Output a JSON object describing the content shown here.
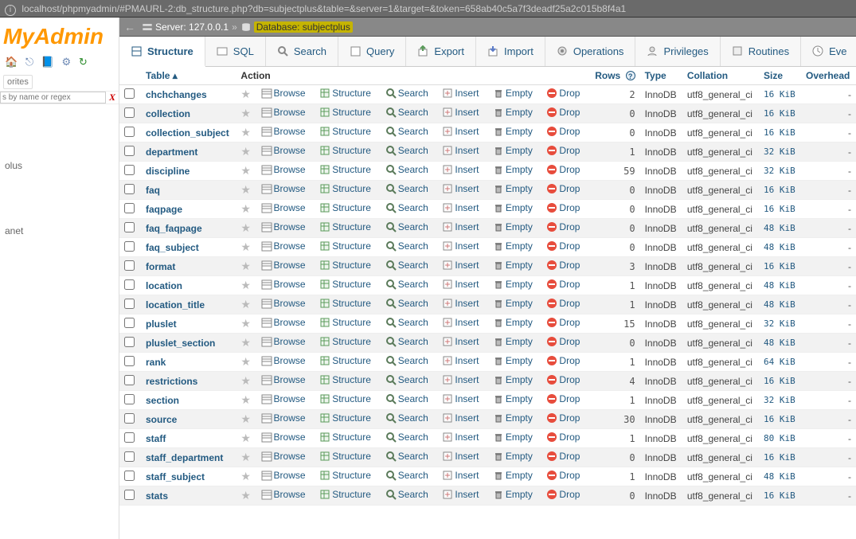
{
  "browser": {
    "url": "localhost/phpmyadmin/#PMAURL-2:db_structure.php?db=subjectplus&table=&server=1&target=&token=658ab40c5a7f3deadf25a2c015b8f4a1"
  },
  "sidebar": {
    "logo_text": "MyAdmin",
    "favorites_label": "orites",
    "filter_placeholder": "s by name or regex",
    "tree_items": [
      "olus",
      "anet"
    ]
  },
  "serverbar": {
    "server_label": "Server: ",
    "server_value": "127.0.0.1",
    "db_label": "Database: ",
    "db_value": "subjectplus"
  },
  "tabs": [
    {
      "id": "structure",
      "label": "Structure",
      "active": true
    },
    {
      "id": "sql",
      "label": "SQL",
      "active": false
    },
    {
      "id": "search",
      "label": "Search",
      "active": false
    },
    {
      "id": "query",
      "label": "Query",
      "active": false
    },
    {
      "id": "export",
      "label": "Export",
      "active": false
    },
    {
      "id": "import",
      "label": "Import",
      "active": false
    },
    {
      "id": "operations",
      "label": "Operations",
      "active": false
    },
    {
      "id": "privileges",
      "label": "Privileges",
      "active": false
    },
    {
      "id": "routines",
      "label": "Routines",
      "active": false
    },
    {
      "id": "events",
      "label": "Eve",
      "active": false
    }
  ],
  "columns": {
    "table": "Table",
    "action": "Action",
    "rows": "Rows",
    "type": "Type",
    "collation": "Collation",
    "size": "Size",
    "overhead": "Overhead"
  },
  "actions": {
    "browse": "Browse",
    "structure": "Structure",
    "search": "Search",
    "insert": "Insert",
    "empty": "Empty",
    "drop": "Drop"
  },
  "tables": [
    {
      "name": "chchchanges",
      "rows": "2",
      "type": "InnoDB",
      "collation": "utf8_general_ci",
      "size": "16 KiB",
      "overhead": "-"
    },
    {
      "name": "collection",
      "rows": "0",
      "type": "InnoDB",
      "collation": "utf8_general_ci",
      "size": "16 KiB",
      "overhead": "-"
    },
    {
      "name": "collection_subject",
      "rows": "0",
      "type": "InnoDB",
      "collation": "utf8_general_ci",
      "size": "16 KiB",
      "overhead": "-"
    },
    {
      "name": "department",
      "rows": "1",
      "type": "InnoDB",
      "collation": "utf8_general_ci",
      "size": "32 KiB",
      "overhead": "-"
    },
    {
      "name": "discipline",
      "rows": "59",
      "type": "InnoDB",
      "collation": "utf8_general_ci",
      "size": "32 KiB",
      "overhead": "-"
    },
    {
      "name": "faq",
      "rows": "0",
      "type": "InnoDB",
      "collation": "utf8_general_ci",
      "size": "16 KiB",
      "overhead": "-"
    },
    {
      "name": "faqpage",
      "rows": "0",
      "type": "InnoDB",
      "collation": "utf8_general_ci",
      "size": "16 KiB",
      "overhead": "-"
    },
    {
      "name": "faq_faqpage",
      "rows": "0",
      "type": "InnoDB",
      "collation": "utf8_general_ci",
      "size": "48 KiB",
      "overhead": "-"
    },
    {
      "name": "faq_subject",
      "rows": "0",
      "type": "InnoDB",
      "collation": "utf8_general_ci",
      "size": "48 KiB",
      "overhead": "-"
    },
    {
      "name": "format",
      "rows": "3",
      "type": "InnoDB",
      "collation": "utf8_general_ci",
      "size": "16 KiB",
      "overhead": "-"
    },
    {
      "name": "location",
      "rows": "1",
      "type": "InnoDB",
      "collation": "utf8_general_ci",
      "size": "48 KiB",
      "overhead": "-"
    },
    {
      "name": "location_title",
      "rows": "1",
      "type": "InnoDB",
      "collation": "utf8_general_ci",
      "size": "48 KiB",
      "overhead": "-"
    },
    {
      "name": "pluslet",
      "rows": "15",
      "type": "InnoDB",
      "collation": "utf8_general_ci",
      "size": "32 KiB",
      "overhead": "-"
    },
    {
      "name": "pluslet_section",
      "rows": "0",
      "type": "InnoDB",
      "collation": "utf8_general_ci",
      "size": "48 KiB",
      "overhead": "-"
    },
    {
      "name": "rank",
      "rows": "1",
      "type": "InnoDB",
      "collation": "utf8_general_ci",
      "size": "64 KiB",
      "overhead": "-"
    },
    {
      "name": "restrictions",
      "rows": "4",
      "type": "InnoDB",
      "collation": "utf8_general_ci",
      "size": "16 KiB",
      "overhead": "-"
    },
    {
      "name": "section",
      "rows": "1",
      "type": "InnoDB",
      "collation": "utf8_general_ci",
      "size": "32 KiB",
      "overhead": "-"
    },
    {
      "name": "source",
      "rows": "30",
      "type": "InnoDB",
      "collation": "utf8_general_ci",
      "size": "16 KiB",
      "overhead": "-"
    },
    {
      "name": "staff",
      "rows": "1",
      "type": "InnoDB",
      "collation": "utf8_general_ci",
      "size": "80 KiB",
      "overhead": "-"
    },
    {
      "name": "staff_department",
      "rows": "0",
      "type": "InnoDB",
      "collation": "utf8_general_ci",
      "size": "16 KiB",
      "overhead": "-"
    },
    {
      "name": "staff_subject",
      "rows": "1",
      "type": "InnoDB",
      "collation": "utf8_general_ci",
      "size": "48 KiB",
      "overhead": "-"
    },
    {
      "name": "stats",
      "rows": "0",
      "type": "InnoDB",
      "collation": "utf8_general_ci",
      "size": "16 KiB",
      "overhead": "-"
    }
  ],
  "colors": {
    "link": "#235a81",
    "logo": "#ff9800",
    "highlight": "#c5b400",
    "row_alt": "#f2f2f2"
  }
}
